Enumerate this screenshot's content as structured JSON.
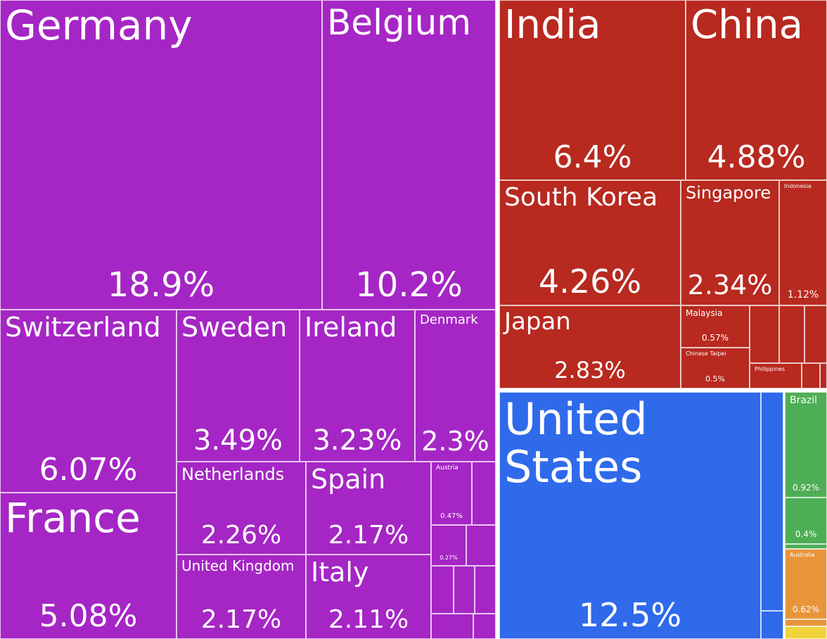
{
  "chart_data": {
    "type": "treemap",
    "categories": [
      "Germany",
      "Belgium",
      "Switzerland",
      "France",
      "Sweden",
      "Ireland",
      "Denmark",
      "Netherlands",
      "United Kingdom",
      "Spain",
      "Italy",
      "Austria",
      null,
      "India",
      "China",
      "South Korea",
      "Singapore",
      "Indonesia",
      "Japan",
      "Malaysia",
      "Chinese Taipei",
      "Philippines",
      "United States",
      "Brazil",
      null,
      "Australia"
    ],
    "values": [
      18.9,
      10.2,
      6.07,
      5.08,
      3.49,
      3.23,
      2.3,
      2.26,
      2.17,
      2.17,
      2.11,
      0.47,
      0.27,
      6.4,
      4.88,
      4.26,
      2.34,
      1.12,
      2.83,
      0.57,
      0.5,
      0.3,
      12.5,
      0.92,
      0.4,
      0.62
    ],
    "value_labels": [
      "18.9%",
      "10.2%",
      "6.07%",
      "5.08%",
      "3.49%",
      "3.23%",
      "2.3%",
      "2.26%",
      "2.17%",
      "2.17%",
      "2.11%",
      "0.47%",
      "0.27%",
      "6.4%",
      "4.88%",
      "4.26%",
      "2.34%",
      "1.12%",
      "2.83%",
      "0.57%",
      "0.5%",
      null,
      "12.5%",
      "0.92%",
      "0.4%",
      "0.62%"
    ],
    "colors": [
      "#a526c4",
      "#a526c4",
      "#a526c4",
      "#a526c4",
      "#a526c4",
      "#a526c4",
      "#a526c4",
      "#a526c4",
      "#a526c4",
      "#a526c4",
      "#a526c4",
      "#a526c4",
      "#a526c4",
      "#b8291f",
      "#b8291f",
      "#b8291f",
      "#b8291f",
      "#b8291f",
      "#b8291f",
      "#b8291f",
      "#b8291f",
      "#b8291f",
      "#2f6aeb",
      "#4dae55",
      "#4dae55",
      "#e8953a"
    ]
  }
}
